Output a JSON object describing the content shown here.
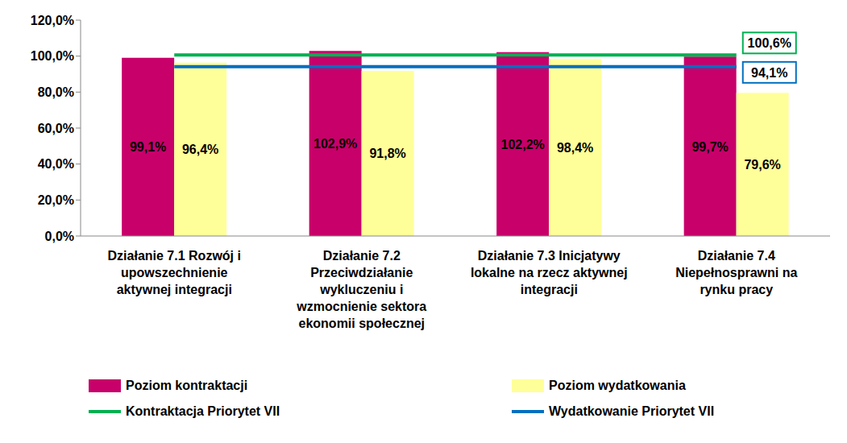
{
  "chart_data": {
    "type": "bar",
    "categories": [
      "Działanie 7.1 Rozwój i upowszechnienie aktywnej integracji",
      "Działanie 7.2 Przeciwdziałanie wykluczeniu i wzmocnienie sektora ekonomii społecznej",
      "Działanie 7.3 Inicjatywy lokalne na rzecz aktywnej integracji",
      "Działanie 7.4 Niepełnosprawni na rynku pracy"
    ],
    "series": [
      {
        "name": "Poziom kontraktacji",
        "type": "bar",
        "color": "#c8006a",
        "values": [
          99.1,
          102.9,
          102.2,
          99.7
        ],
        "value_labels": [
          "99,1%",
          "102,9%",
          "102,2%",
          "99,7%"
        ]
      },
      {
        "name": "Poziom wydatkowania",
        "type": "bar",
        "color": "#ffff99",
        "values": [
          96.4,
          91.8,
          98.4,
          79.6
        ],
        "value_labels": [
          "96,4%",
          "91,8%",
          "98,4%",
          "79,6%"
        ]
      },
      {
        "name": "Kontraktacja Priorytet VII",
        "type": "line",
        "color": "#00b050",
        "values": [
          100.6,
          100.6,
          100.6,
          100.6
        ],
        "value_labels": [
          null,
          null,
          null,
          "100,6%"
        ]
      },
      {
        "name": "Wydatkowanie Priorytet VII",
        "type": "line",
        "color": "#0070c0",
        "values": [
          94.1,
          94.1,
          94.1,
          94.1
        ],
        "value_labels": [
          null,
          null,
          null,
          "94,1%"
        ]
      }
    ],
    "ylim": [
      0,
      120
    ],
    "yticks": [
      {
        "value": 0,
        "label": "0,0%"
      },
      {
        "value": 20,
        "label": "20,0%"
      },
      {
        "value": 40,
        "label": "40,0%"
      },
      {
        "value": 60,
        "label": "60,0%"
      },
      {
        "value": 80,
        "label": "80,0%"
      },
      {
        "value": 100,
        "label": "100,0%"
      },
      {
        "value": 120,
        "label": "120,0%"
      }
    ],
    "grid": false,
    "data_labels": true
  }
}
